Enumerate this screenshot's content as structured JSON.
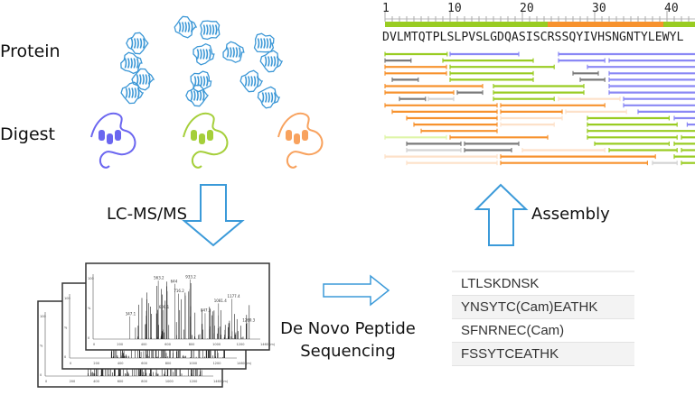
{
  "labels": {
    "protein": "Protein",
    "digest": "Digest",
    "lcms": "LC-MS/MS",
    "denovo": "De Novo Peptide Sequencing",
    "assembly": "Assembly"
  },
  "colors": {
    "protein": "#3b97d6",
    "digest": [
      "#6b66f0",
      "#a5cf3a",
      "#f8a25e"
    ],
    "arrow": "#3b9ad9",
    "green": "#99cc22",
    "blue": "#8a88f5",
    "orange": "#f7922e",
    "gray": "#7a7a7a",
    "peach": "#fde1c9",
    "lightgray": "#d3d3d3",
    "lightgreen": "#dff5a8"
  },
  "ruler": {
    "ticks": [
      "1",
      "10",
      "20",
      "30",
      "40"
    ],
    "segments": [
      {
        "from": 1,
        "to": 23.5,
        "color": "green"
      },
      {
        "from": 23.5,
        "to": 39.5,
        "color": "orange"
      },
      {
        "from": 39.5,
        "to": 44,
        "color": "green"
      }
    ]
  },
  "sequence": "DVLMTQTPLSLPVSLGDQASISCRSSQYIVHSNGNTYLEWYL",
  "peptide_bars": [
    [
      [
        1,
        9.6,
        "green"
      ],
      [
        10,
        19.5,
        "blue"
      ],
      [
        25,
        44,
        "blue"
      ]
    ],
    [
      [
        1,
        4.6,
        "gray"
      ],
      [
        9,
        21.5,
        "green"
      ],
      [
        25,
        31.4,
        "blue"
      ],
      [
        32,
        44,
        "blue"
      ]
    ],
    [
      [
        1,
        9.5,
        "orange"
      ],
      [
        10,
        24.4,
        "green"
      ],
      [
        29,
        44,
        "blue"
      ]
    ],
    [
      [
        1,
        9.5,
        "orange"
      ],
      [
        10,
        21.5,
        "green"
      ],
      [
        27,
        30.5,
        "gray"
      ],
      [
        32,
        44,
        "blue"
      ]
    ],
    [
      [
        2,
        5.6,
        "gray"
      ],
      [
        10,
        21.5,
        "green"
      ],
      [
        28,
        31.4,
        "gray"
      ],
      [
        32,
        44,
        "blue"
      ]
    ],
    [
      [
        1,
        14.5,
        "orange"
      ],
      [
        16,
        28.5,
        "green"
      ],
      [
        32,
        44,
        "blue"
      ]
    ],
    [
      [
        1,
        10.5,
        "orange"
      ],
      [
        11,
        14.5,
        "gray"
      ],
      [
        16,
        28.5,
        "green"
      ],
      [
        32,
        44,
        "blue"
      ]
    ],
    [
      [
        3,
        6.6,
        "gray"
      ],
      [
        7,
        10.5,
        "lightgray"
      ],
      [
        16,
        24.4,
        "green"
      ],
      [
        25,
        33.5,
        "peach"
      ],
      [
        34,
        44,
        "blue"
      ]
    ],
    [
      [
        1,
        16.5,
        "orange"
      ],
      [
        17,
        31.4,
        "orange"
      ],
      [
        34,
        44,
        "blue"
      ]
    ],
    [
      [
        2,
        16.5,
        "orange"
      ],
      [
        17,
        25.5,
        "orange"
      ],
      [
        26,
        34.4,
        "peach"
      ],
      [
        36,
        44,
        "blue"
      ]
    ],
    [
      [
        4,
        16.5,
        "orange"
      ],
      [
        17,
        25.5,
        "peach"
      ],
      [
        29,
        40.3,
        "green"
      ],
      [
        41,
        44,
        "blue"
      ]
    ],
    [
      [
        5,
        16.5,
        "orange"
      ],
      [
        17,
        24.4,
        "peach"
      ],
      [
        29,
        41.4,
        "green"
      ],
      [
        42.8,
        44,
        "blue"
      ]
    ],
    [
      [
        6,
        16.5,
        "orange"
      ],
      [
        29,
        44,
        "green"
      ]
    ],
    [
      [
        1,
        9.5,
        "lightgreen"
      ],
      [
        10,
        23.5,
        "orange"
      ],
      [
        29,
        41.4,
        "green"
      ],
      [
        42,
        44,
        "green"
      ]
    ],
    [
      [
        4,
        11.5,
        "gray"
      ],
      [
        12,
        19.5,
        "gray"
      ],
      [
        30,
        40.3,
        "green"
      ],
      [
        41,
        44,
        "green"
      ]
    ],
    [
      [
        4,
        11.5,
        "lightgray"
      ],
      [
        12,
        18.5,
        "gray"
      ],
      [
        20,
        31.4,
        "peach"
      ],
      [
        32,
        41.4,
        "green"
      ],
      [
        42,
        44,
        "green"
      ]
    ],
    [
      [
        1,
        16.5,
        "peach"
      ],
      [
        17,
        38.4,
        "orange"
      ],
      [
        41,
        44,
        "green"
      ]
    ],
    [
      [
        4,
        16.5,
        "peach"
      ],
      [
        17,
        37.3,
        "orange"
      ],
      [
        38,
        41.4,
        "lightgray"
      ],
      [
        42,
        44,
        "green"
      ]
    ]
  ],
  "peptides": [
    "LTLSKDNSK",
    "YNSYTC(Cam)EATHK",
    "SFNRNEC(Cam)",
    "FSSYTCEATHK"
  ],
  "spectrum": {
    "x_ticks": [
      "0",
      "200",
      "400",
      "600",
      "800",
      "1000",
      "1200",
      "1460 (m)"
    ],
    "y_ticks": [
      "0",
      "%",
      "100"
    ],
    "peak_labels": [
      "563.2",
      "644",
      "933.2",
      "716.2",
      "609.1",
      "347.1",
      "847.3",
      "1081.4",
      "1177.4",
      "1269.3"
    ]
  }
}
